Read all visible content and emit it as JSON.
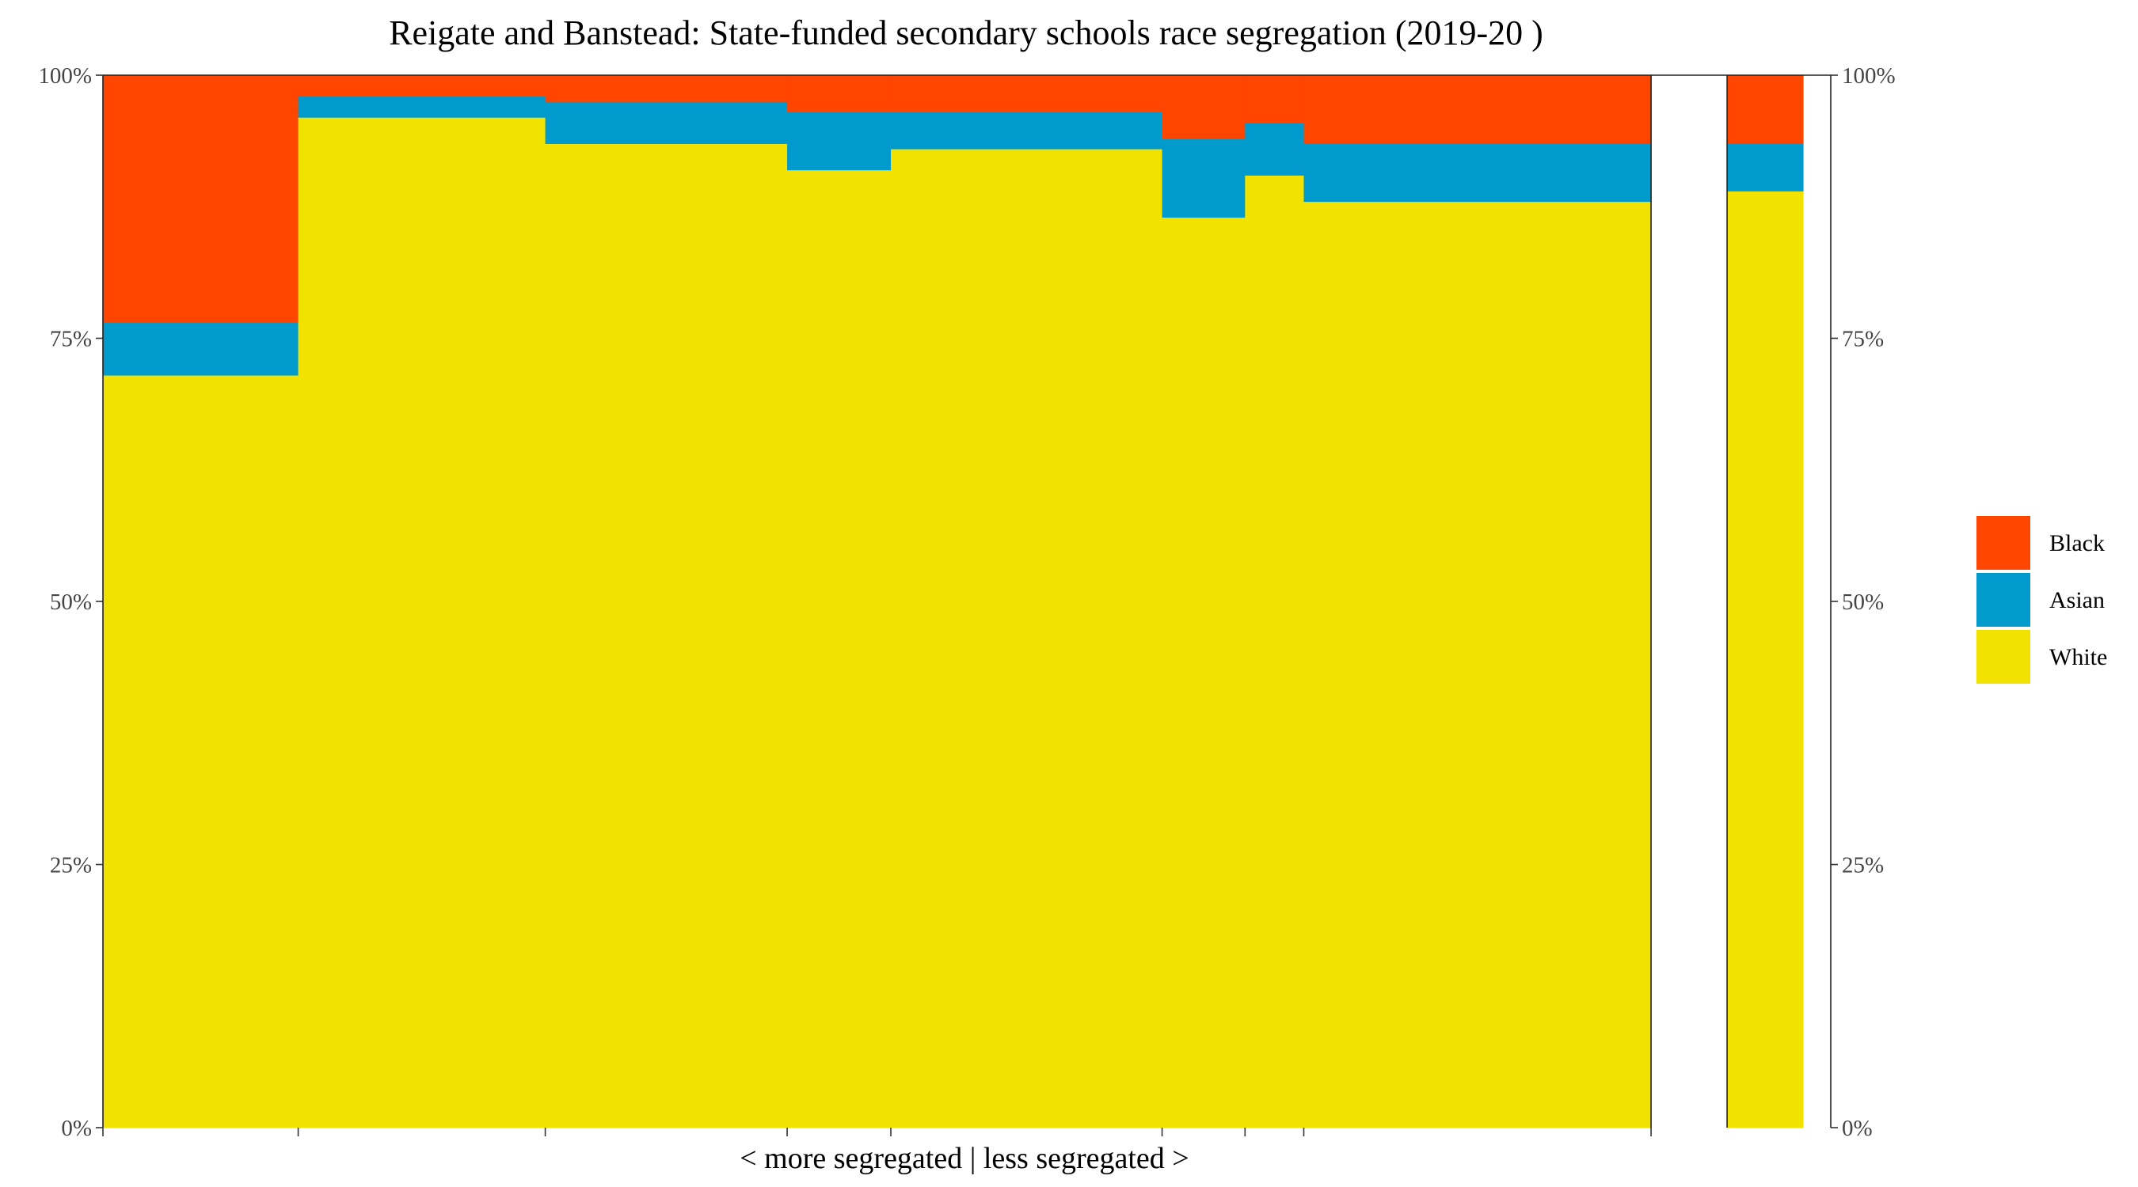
{
  "chart_data": {
    "type": "bar",
    "subtype": "stacked-variable-width",
    "title": "Reigate and Banstead: State-funded secondary schools race segregation (2019-20 )",
    "xlabel": "< more segregated | less segregated >",
    "ylabel": "",
    "ylim": [
      0,
      100
    ],
    "y_ticks": [
      "0%",
      "25%",
      "50%",
      "75%",
      "100%"
    ],
    "y_tick_values": [
      0,
      25,
      50,
      75,
      100
    ],
    "grid": false,
    "legend_position": "right",
    "colors": {
      "Black": "#ff4500",
      "Asian": "#009acd",
      "White": "#f2e200"
    },
    "series": [
      {
        "name": "White",
        "values": [
          71.5,
          96,
          93.5,
          91,
          93,
          86.5,
          90.5,
          88,
          89
        ]
      },
      {
        "name": "Asian",
        "values": [
          5,
          2,
          4,
          5.5,
          3.5,
          7.5,
          5,
          5.5,
          4.5
        ]
      },
      {
        "name": "Black",
        "values": [
          23.5,
          2,
          2.5,
          3.5,
          3.5,
          6,
          4.5,
          6.5,
          6.5
        ]
      }
    ],
    "bar_widths": [
      0.113,
      0.143,
      0.14,
      0.06,
      0.157,
      0.048,
      0.034,
      0.201,
      0.044
    ],
    "gap_before_last_bar": 0.044,
    "legend": [
      "Black",
      "Asian",
      "White"
    ]
  }
}
